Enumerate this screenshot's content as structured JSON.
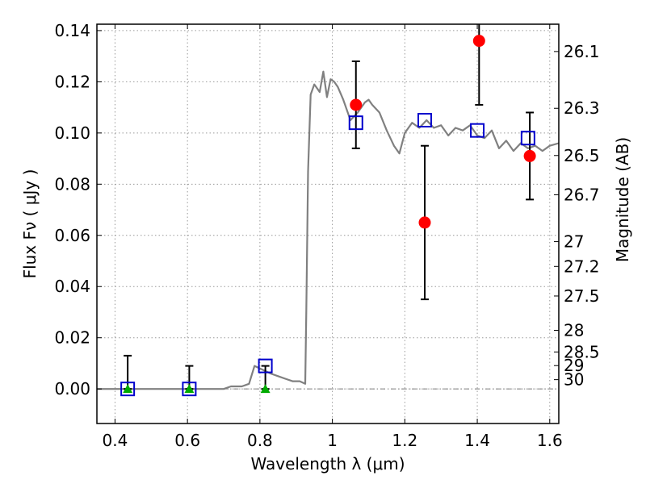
{
  "chart_data": {
    "type": "scatter",
    "title": "",
    "xlabel": "Wavelength  λ (μm)",
    "ylabel": "Flux  Fν  ( μJy )",
    "y2label": "Magnitude (AB)",
    "xlim": [
      0.35,
      1.625
    ],
    "ylim": [
      -0.0135,
      0.1425
    ],
    "grid": true,
    "legend": "none",
    "x_ticks": [
      {
        "value": 0.4,
        "label": "0.4"
      },
      {
        "value": 0.6,
        "label": "0.6"
      },
      {
        "value": 0.8,
        "label": "0.8"
      },
      {
        "value": 1.0,
        "label": "1"
      },
      {
        "value": 1.2,
        "label": "1.2"
      },
      {
        "value": 1.4,
        "label": "1.4"
      },
      {
        "value": 1.6,
        "label": "1.6"
      }
    ],
    "y_ticks": [
      {
        "value": 0.0,
        "label": "0.00"
      },
      {
        "value": 0.02,
        "label": "0.02"
      },
      {
        "value": 0.04,
        "label": "0.04"
      },
      {
        "value": 0.06,
        "label": "0.06"
      },
      {
        "value": 0.08,
        "label": "0.08"
      },
      {
        "value": 0.1,
        "label": "0.10"
      },
      {
        "value": 0.12,
        "label": "0.12"
      },
      {
        "value": 0.14,
        "label": "0.14"
      }
    ],
    "y2_ticks": [
      {
        "value": 26.1,
        "label": "26.1"
      },
      {
        "value": 26.3,
        "label": "26.3"
      },
      {
        "value": 26.5,
        "label": "26.5"
      },
      {
        "value": 26.7,
        "label": "26.7"
      },
      {
        "value": 27.0,
        "label": "27"
      },
      {
        "value": 27.2,
        "label": "27.2"
      },
      {
        "value": 27.5,
        "label": "27.5"
      },
      {
        "value": 28.0,
        "label": "28"
      },
      {
        "value": 28.5,
        "label": "28.5"
      },
      {
        "value": 29.0,
        "label": "29"
      },
      {
        "value": 30.0,
        "label": "30"
      }
    ],
    "colors": {
      "model": "#808080",
      "observed": "#ff0000",
      "model_points": "#0000cc",
      "upper_limits": "#00aa00",
      "errorbar": "#000000",
      "zero_line": "#808080"
    },
    "model_spectrum": {
      "x": [
        0.35,
        0.5,
        0.7,
        0.72,
        0.75,
        0.77,
        0.785,
        0.8,
        0.83,
        0.85,
        0.87,
        0.89,
        0.91,
        0.925,
        0.928,
        0.933,
        0.94,
        0.95,
        0.96,
        0.965,
        0.975,
        0.985,
        0.995,
        1.005,
        1.015,
        1.03,
        1.05,
        1.07,
        1.09,
        1.1,
        1.11,
        1.13,
        1.15,
        1.17,
        1.185,
        1.2,
        1.22,
        1.24,
        1.26,
        1.28,
        1.3,
        1.32,
        1.34,
        1.36,
        1.38,
        1.4,
        1.42,
        1.44,
        1.46,
        1.48,
        1.5,
        1.52,
        1.54,
        1.56,
        1.58,
        1.6,
        1.625
      ],
      "y": [
        0.0,
        0.0,
        0.0,
        0.001,
        0.001,
        0.002,
        0.009,
        0.008,
        0.006,
        0.005,
        0.004,
        0.003,
        0.003,
        0.002,
        0.03,
        0.085,
        0.115,
        0.119,
        0.117,
        0.116,
        0.124,
        0.114,
        0.121,
        0.12,
        0.118,
        0.113,
        0.105,
        0.108,
        0.112,
        0.113,
        0.111,
        0.108,
        0.101,
        0.095,
        0.092,
        0.1,
        0.104,
        0.102,
        0.105,
        0.102,
        0.103,
        0.099,
        0.102,
        0.101,
        0.103,
        0.099,
        0.098,
        0.101,
        0.094,
        0.097,
        0.093,
        0.096,
        0.094,
        0.095,
        0.093,
        0.095,
        0.096
      ]
    },
    "series": [
      {
        "marker": "circle",
        "points": [
          {
            "x": 1.065,
            "y": 0.111,
            "ylo": 0.094,
            "yhi": 0.128
          },
          {
            "x": 1.255,
            "y": 0.065,
            "ylo": 0.035,
            "yhi": 0.095
          },
          {
            "x": 1.405,
            "y": 0.136,
            "ylo": 0.111,
            "yhi": 0.145
          },
          {
            "x": 1.545,
            "y": 0.091,
            "ylo": 0.074,
            "yhi": 0.108
          }
        ]
      },
      {
        "marker": "open-square",
        "points": [
          {
            "x": 0.435,
            "y": 0.0
          },
          {
            "x": 0.605,
            "y": 0.0
          },
          {
            "x": 0.815,
            "y": 0.009
          },
          {
            "x": 1.065,
            "y": 0.104
          },
          {
            "x": 1.255,
            "y": 0.105
          },
          {
            "x": 1.4,
            "y": 0.101
          },
          {
            "x": 1.54,
            "y": 0.098
          }
        ]
      },
      {
        "marker": "triangle",
        "points": [
          {
            "x": 0.435,
            "y": 0.0,
            "yhi": 0.013
          },
          {
            "x": 0.605,
            "y": 0.0,
            "yhi": 0.009
          },
          {
            "x": 0.815,
            "y": 0.0,
            "yhi": 0.009
          }
        ]
      }
    ]
  }
}
